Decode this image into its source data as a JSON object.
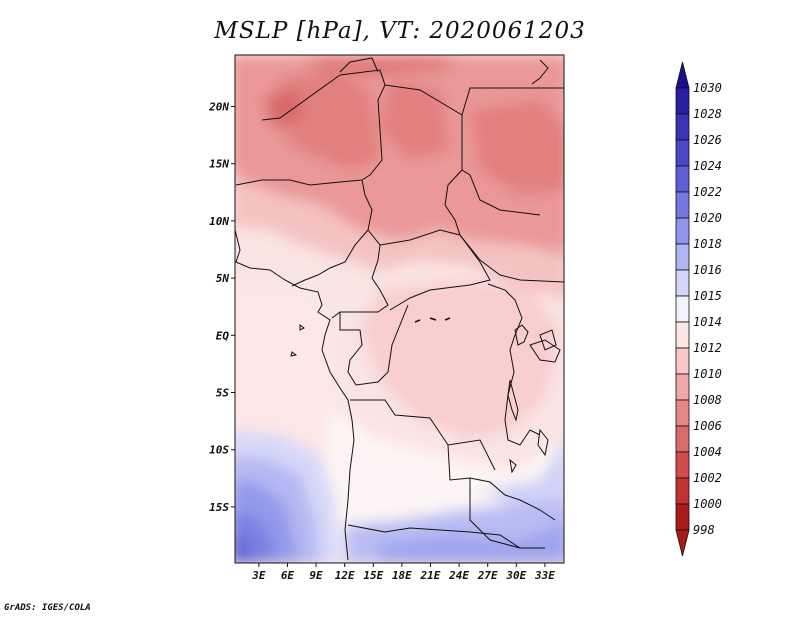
{
  "title": "MSLP [hPa], VT: 2020061203",
  "credit": "GrADS: IGES/COLA",
  "map": {
    "variable": "Mean sea level pressure",
    "units": "hPa",
    "lat_labels": [
      {
        "value": 20,
        "text": "20N"
      },
      {
        "value": 15,
        "text": "15N"
      },
      {
        "value": 10,
        "text": "10N"
      },
      {
        "value": 5,
        "text": "5N"
      },
      {
        "value": 0,
        "text": "EQ"
      },
      {
        "value": -5,
        "text": "5S"
      },
      {
        "value": -10,
        "text": "10S"
      },
      {
        "value": -15,
        "text": "15S"
      }
    ],
    "lon_labels": [
      {
        "value": 3,
        "text": "3E"
      },
      {
        "value": 6,
        "text": "6E"
      },
      {
        "value": 9,
        "text": "9E"
      },
      {
        "value": 12,
        "text": "12E"
      },
      {
        "value": 15,
        "text": "15E"
      },
      {
        "value": 18,
        "text": "18E"
      },
      {
        "value": 21,
        "text": "21E"
      },
      {
        "value": 24,
        "text": "24E"
      },
      {
        "value": 27,
        "text": "27E"
      },
      {
        "value": 30,
        "text": "30E"
      },
      {
        "value": 33,
        "text": "33E"
      }
    ]
  },
  "colorbar": {
    "levels": [
      "1030",
      "1028",
      "1026",
      "1024",
      "1022",
      "1020",
      "1018",
      "1016",
      "1015",
      "1014",
      "1012",
      "1010",
      "1008",
      "1006",
      "1004",
      "1002",
      "1000",
      "998"
    ],
    "colors": [
      "#1a0f8c",
      "#2a1fa3",
      "#3a33b8",
      "#4a47c8",
      "#5d5fd6",
      "#7478e2",
      "#8f95ec",
      "#b0b6f4",
      "#d3d6f9",
      "#f2f3fd",
      "#fde6e6",
      "#f8c8c8",
      "#f0a8a8",
      "#e68888",
      "#dd6a6a",
      "#d24c4c",
      "#c33232",
      "#a91a1a"
    ]
  },
  "regions": {
    "sahel_north": "1006",
    "tropical_belt": "1010",
    "congo_basin": "1012",
    "gulf_of_guinea": "1014",
    "angola_coast": "1015",
    "south_atlantic": "1018",
    "southern_interior": "1016"
  }
}
